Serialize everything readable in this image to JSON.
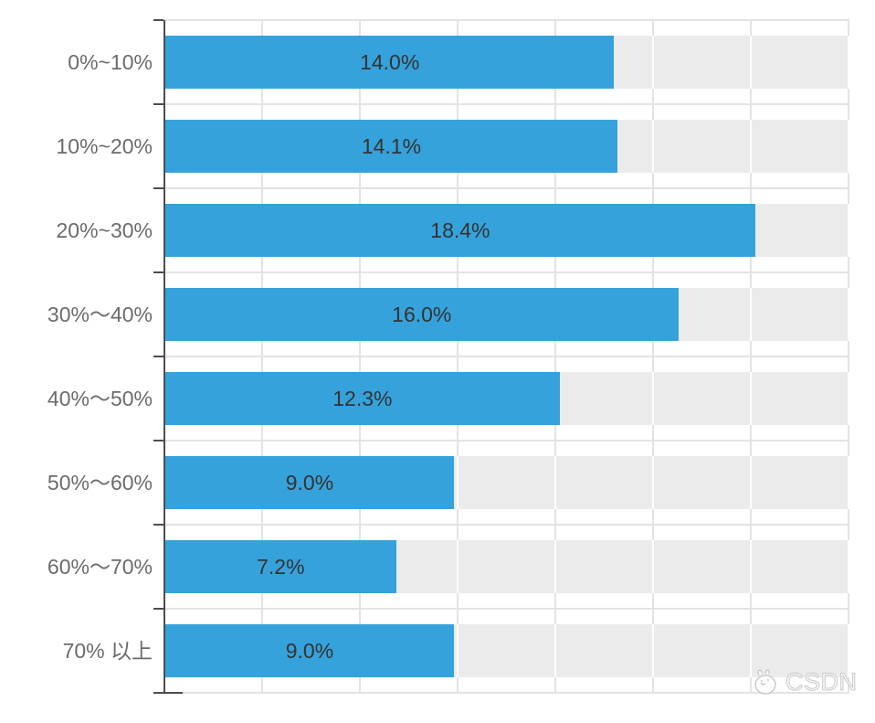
{
  "chart_data": {
    "type": "bar",
    "orientation": "horizontal",
    "categories": [
      "0%~10%",
      "10%~20%",
      "20%~30%",
      "30%～40%",
      "40%～50%",
      "50%～60%",
      "60%～70%",
      "70% 以上"
    ],
    "values": [
      14.0,
      14.1,
      18.4,
      16.0,
      12.3,
      9.0,
      7.2,
      9.0
    ],
    "value_labels": [
      "14.0%",
      "14.1%",
      "18.4%",
      "16.0%",
      "12.3%",
      "9.0%",
      "7.2%",
      "9.0%"
    ],
    "title": "",
    "xlabel": "",
    "ylabel": "",
    "xlim": [
      0,
      21.34
    ],
    "grid": {
      "on": true,
      "vertical_divisions": 7,
      "horizontal_rows": 8
    },
    "legend": "none",
    "value_label_position": "center-inside-bar"
  },
  "colors": {
    "bar": "#36a2db",
    "track": "#ebebeb",
    "grid": "#e3e3e3",
    "axis": "#4d4d4d",
    "category_label": "#6b6b6b",
    "value_label": "#333333",
    "background": "#ffffff",
    "watermark": "#c9c9c9"
  },
  "watermark": {
    "text": "CSDN",
    "icon": "csdn-mascot-icon"
  }
}
